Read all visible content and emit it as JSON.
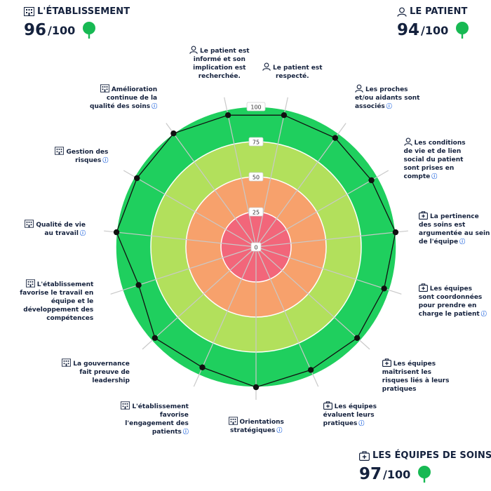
{
  "scores": {
    "etablissement": {
      "title": "L'ÉTABLISSEMENT",
      "value": "96",
      "max": "/100",
      "icon": "building-icon",
      "badge_icon": "tree-icon"
    },
    "patient": {
      "title": "LE PATIENT",
      "value": "94",
      "max": "/100",
      "icon": "person-icon",
      "badge_icon": "tree-icon"
    },
    "equipes": {
      "title": "LES ÉQUIPES DE SOINS",
      "value": "97",
      "max": "/100",
      "icon": "medical-kit-icon",
      "badge_icon": "tree-icon"
    }
  },
  "colors": {
    "ring_0_25": "#f2667a",
    "ring_25_50": "#f7a16c",
    "ring_50_75": "#b2e05c",
    "ring_75_100": "#1fcf5e",
    "text": "#14213d",
    "tree": "#17b953",
    "help": "#2f6fe0"
  },
  "chart_data": {
    "type": "radar",
    "rmax": 100,
    "rings": [
      0,
      25,
      50,
      75,
      100
    ],
    "tick_labels": [
      "0",
      "25",
      "50",
      "75",
      "100"
    ],
    "axes": [
      {
        "lines": [
          "Le patient est",
          "respecté."
        ],
        "icon": "person-icon",
        "help": false,
        "value": 96
      },
      {
        "lines": [
          "Les proches",
          "et/ou aidants sont",
          "associés"
        ],
        "icon": "person-icon",
        "help": true,
        "value": 96
      },
      {
        "lines": [
          "Les conditions",
          "de vie et de lien",
          "social du patient",
          "sont prises en",
          "compte"
        ],
        "icon": "person-icon",
        "help": true,
        "value": 95
      },
      {
        "lines": [
          "La pertinence",
          "des soins est",
          "argumentée au sein",
          "de l'équipe"
        ],
        "icon": "medical-kit-icon",
        "help": true,
        "value": 100
      },
      {
        "lines": [
          "Les équipes",
          "sont coordonnées",
          "pour prendre en",
          "charge le patient"
        ],
        "icon": "medical-kit-icon",
        "help": true,
        "value": 96
      },
      {
        "lines": [
          "Les équipes",
          "maîtrisent les",
          "risques liés à leurs",
          "pratiques"
        ],
        "icon": "medical-kit-icon",
        "help": false,
        "value": 97
      },
      {
        "lines": [
          "Les équipes",
          "évaluent leurs",
          "pratiques"
        ],
        "icon": "medical-kit-icon",
        "help": true,
        "value": 96
      },
      {
        "lines": [
          "Orientations",
          "stratégiques"
        ],
        "icon": "building-icon",
        "help": true,
        "value": 100
      },
      {
        "lines": [
          "L'établissement",
          "favorise",
          "l'engagement des",
          "patients"
        ],
        "icon": "building-icon",
        "help": true,
        "value": 94
      },
      {
        "lines": [
          "La gouvernance",
          "fait preuve de",
          "leadership"
        ],
        "icon": "building-icon",
        "help": false,
        "value": 97
      },
      {
        "lines": [
          "L'établissement",
          "favorise le travail en",
          "équipe et le",
          "développement des",
          "compétences"
        ],
        "icon": "building-icon",
        "help": false,
        "value": 88
      },
      {
        "lines": [
          "Qualité de vie",
          "au travail"
        ],
        "icon": "building-icon",
        "help": true,
        "value": 100
      },
      {
        "lines": [
          "Gestion des",
          "risques"
        ],
        "icon": "building-icon",
        "help": true,
        "value": 98
      },
      {
        "lines": [
          "Amélioration",
          "continue de la",
          "qualité des soins"
        ],
        "icon": "building-icon",
        "help": true,
        "value": 100
      },
      {
        "lines": [
          "Le patient est",
          "informé et son",
          "implication est",
          "recherchée."
        ],
        "icon": "person-icon",
        "help": false,
        "value": 96
      }
    ]
  }
}
